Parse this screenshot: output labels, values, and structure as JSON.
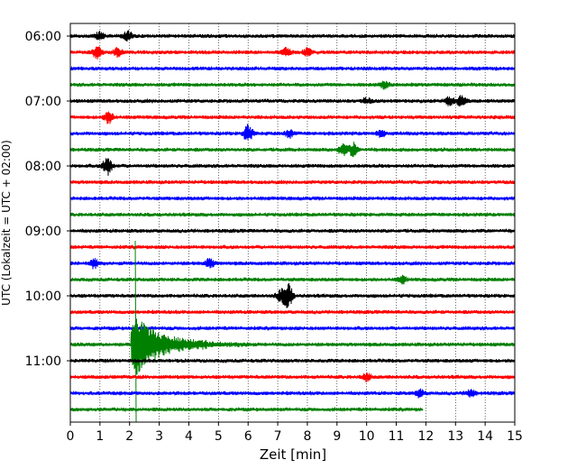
{
  "chart_data": {
    "type": "line",
    "xlabel": "Zeit  [min]",
    "ylabel": "UTC (Lokalzeit = UTC + 02:00)",
    "xlim": [
      0,
      15
    ],
    "x_ticks": [
      0,
      1,
      2,
      3,
      4,
      5,
      6,
      7,
      8,
      9,
      10,
      11,
      12,
      13,
      14,
      15
    ],
    "x_tick_labels": [
      "0",
      "1",
      "2",
      "3",
      "4",
      "5",
      "6",
      "7",
      "8",
      "9",
      "10",
      "11",
      "12",
      "13",
      "14",
      "15"
    ],
    "y_tick_labels": [
      "06:00",
      "07:00",
      "08:00",
      "09:00",
      "10:00",
      "11:00"
    ],
    "y_tick_rows": [
      0,
      4,
      8,
      12,
      16,
      20
    ],
    "row_minutes": 15,
    "grid": "vertical dotted",
    "colors": [
      "#000000",
      "#ff0000",
      "#0000ff",
      "#008000"
    ],
    "traces": [
      {
        "start": "06:00",
        "color": "#000000",
        "end_min": 15,
        "events": [
          {
            "t": 1.0,
            "amp": 4
          },
          {
            "t": 1.95,
            "amp": 5
          }
        ]
      },
      {
        "start": "06:15",
        "color": "#ff0000",
        "end_min": 15,
        "events": [
          {
            "t": 0.9,
            "amp": 6
          },
          {
            "t": 1.6,
            "amp": 4
          },
          {
            "t": 7.3,
            "amp": 5
          },
          {
            "t": 8.0,
            "amp": 4
          }
        ]
      },
      {
        "start": "06:30",
        "color": "#0000ff",
        "end_min": 15,
        "events": []
      },
      {
        "start": "06:45",
        "color": "#008000",
        "end_min": 15,
        "events": [
          {
            "t": 10.6,
            "amp": 4
          }
        ]
      },
      {
        "start": "07:00",
        "color": "#000000",
        "end_min": 15,
        "events": [
          {
            "t": 10.0,
            "amp": 3
          },
          {
            "t": 12.8,
            "amp": 5
          },
          {
            "t": 13.2,
            "amp": 6
          }
        ]
      },
      {
        "start": "07:15",
        "color": "#ff0000",
        "end_min": 15,
        "events": [
          {
            "t": 1.3,
            "amp": 7
          }
        ]
      },
      {
        "start": "07:30",
        "color": "#0000ff",
        "end_min": 15,
        "events": [
          {
            "t": 6.0,
            "amp": 10
          },
          {
            "t": 7.4,
            "amp": 4
          },
          {
            "t": 10.5,
            "amp": 4
          }
        ]
      },
      {
        "start": "07:45",
        "color": "#008000",
        "end_min": 15,
        "events": [
          {
            "t": 9.2,
            "amp": 6
          },
          {
            "t": 9.55,
            "amp": 7
          }
        ]
      },
      {
        "start": "08:00",
        "color": "#000000",
        "end_min": 15,
        "events": [
          {
            "t": 1.25,
            "amp": 10
          }
        ]
      },
      {
        "start": "08:15",
        "color": "#ff0000",
        "end_min": 15,
        "events": []
      },
      {
        "start": "08:30",
        "color": "#0000ff",
        "end_min": 15,
        "events": []
      },
      {
        "start": "08:45",
        "color": "#008000",
        "end_min": 15,
        "events": []
      },
      {
        "start": "09:00",
        "color": "#000000",
        "end_min": 15,
        "events": []
      },
      {
        "start": "09:15",
        "color": "#ff0000",
        "end_min": 15,
        "events": []
      },
      {
        "start": "09:30",
        "color": "#0000ff",
        "end_min": 15,
        "events": [
          {
            "t": 0.8,
            "amp": 5
          },
          {
            "t": 4.7,
            "amp": 5
          }
        ]
      },
      {
        "start": "09:45",
        "color": "#008000",
        "end_min": 15,
        "events": [
          {
            "t": 11.2,
            "amp": 4
          }
        ]
      },
      {
        "start": "10:00",
        "color": "#000000",
        "end_min": 15,
        "events": [
          {
            "t": 7.35,
            "amp": 14
          },
          {
            "t": 7.1,
            "amp": 6
          }
        ]
      },
      {
        "start": "10:15",
        "color": "#ff0000",
        "end_min": 15,
        "events": []
      },
      {
        "start": "10:30",
        "color": "#0000ff",
        "end_min": 15,
        "events": []
      },
      {
        "start": "10:45",
        "color": "#008000",
        "end_min": 15,
        "quake": {
          "t": 2.1,
          "peak": 110,
          "decay_min": 4
        },
        "events": []
      },
      {
        "start": "11:00",
        "color": "#000000",
        "end_min": 15,
        "events": []
      },
      {
        "start": "11:15",
        "color": "#ff0000",
        "end_min": 15,
        "events": [
          {
            "t": 10.0,
            "amp": 4
          }
        ]
      },
      {
        "start": "11:30",
        "color": "#0000ff",
        "end_min": 15,
        "events": [
          {
            "t": 11.8,
            "amp": 4
          },
          {
            "t": 13.5,
            "amp": 4
          }
        ]
      },
      {
        "start": "11:45",
        "color": "#008000",
        "end_min": 11.9,
        "events": []
      }
    ]
  }
}
